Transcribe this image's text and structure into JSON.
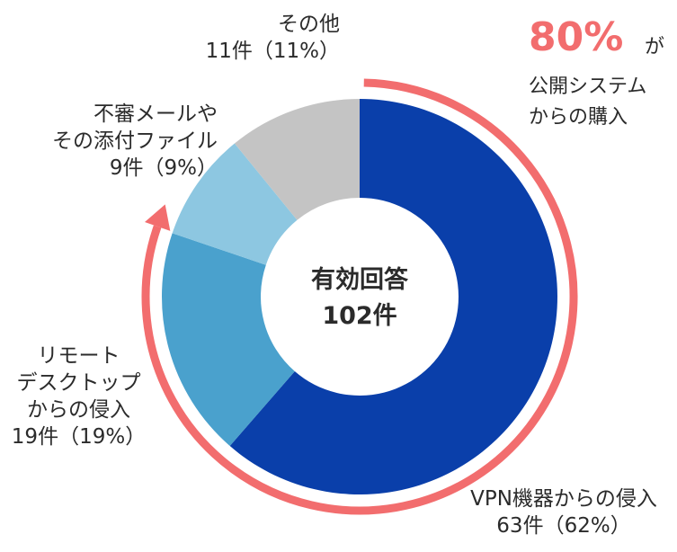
{
  "chart_data": {
    "type": "donut",
    "center_label": [
      "有効回答",
      "102件"
    ],
    "slices": [
      {
        "label": [
          "VPN機器からの侵入"
        ],
        "count": "63件",
        "percent": "（62%）",
        "value": 62,
        "color": "#0a3faa"
      },
      {
        "label": [
          "リモート",
          "デスクトップ",
          "からの侵入"
        ],
        "count": "19件",
        "percent": "（19%）",
        "value": 19,
        "color": "#4aa1cd"
      },
      {
        "label": [
          "不審メールや",
          "その添付ファイル"
        ],
        "count": "9件",
        "percent": "（9%）",
        "value": 9,
        "color": "#8dc7e1"
      },
      {
        "label": [
          "その他"
        ],
        "count": "11件",
        "percent": "（11%）",
        "value": 11,
        "color": "#c4c4c4"
      }
    ],
    "callout": {
      "value": "80%",
      "suffix": "が",
      "lines": [
        "公開システム",
        "からの購入"
      ],
      "color": "#f26d6e"
    }
  }
}
